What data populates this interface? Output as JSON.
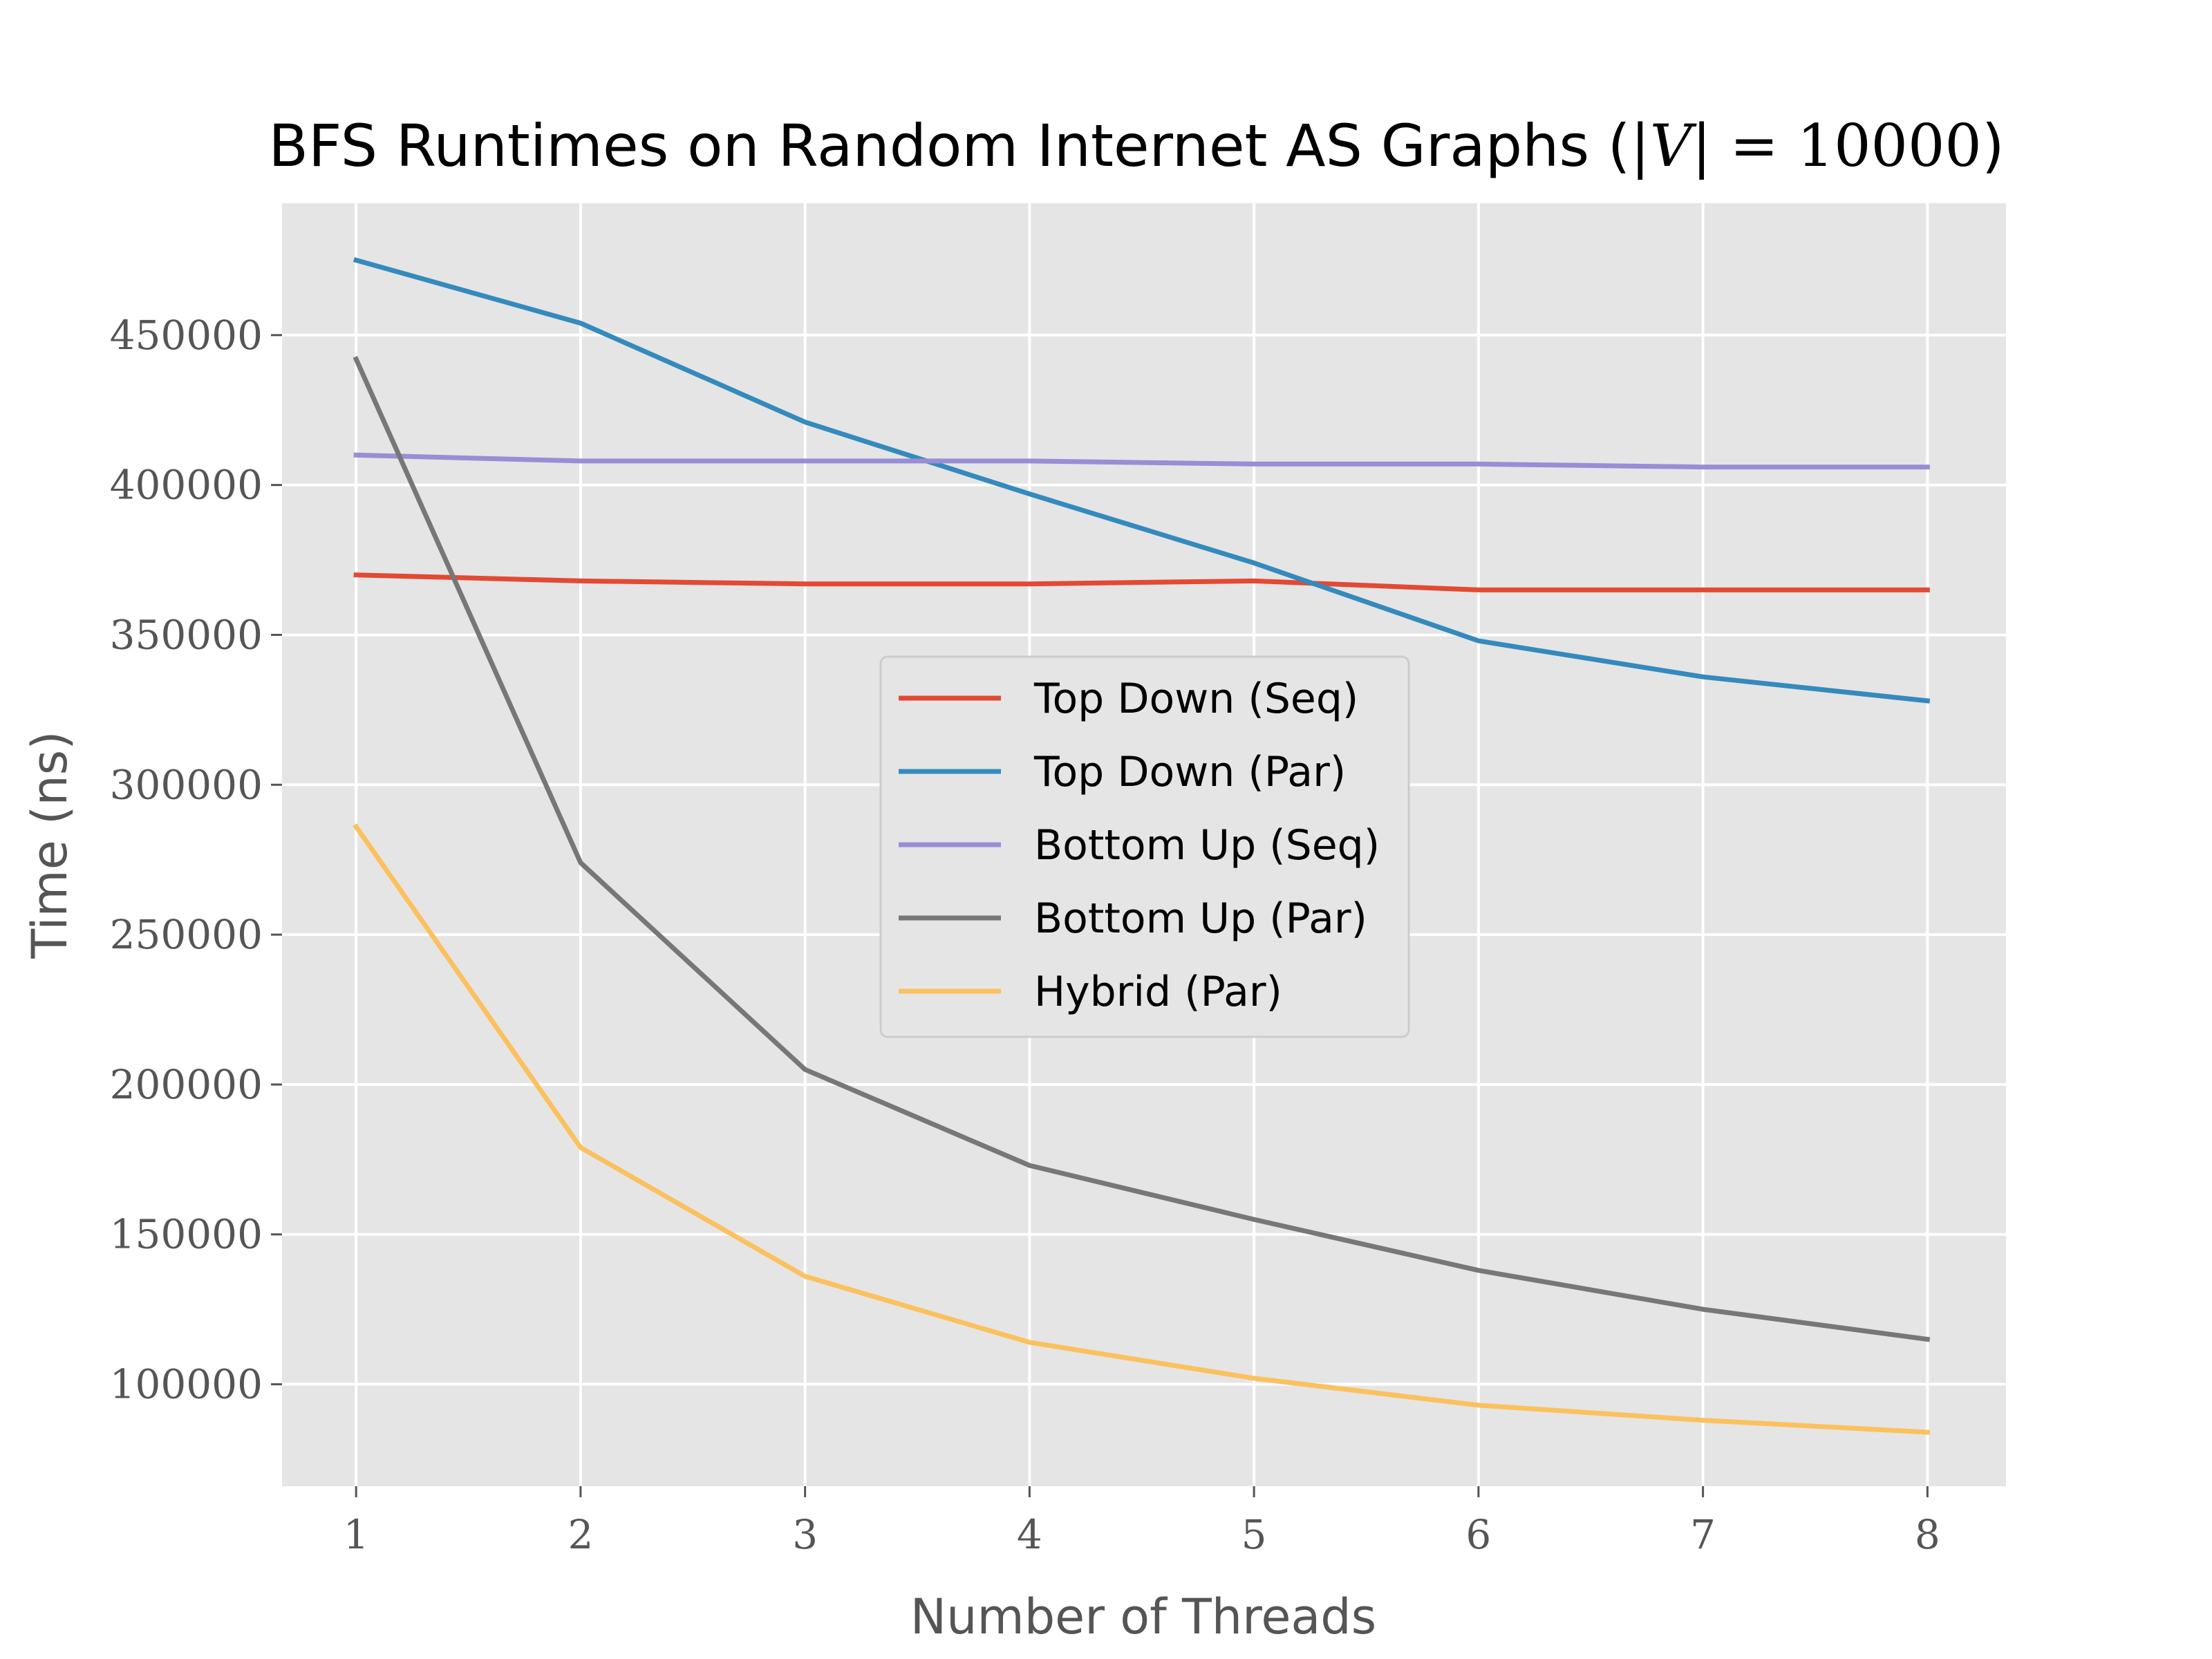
{
  "chart_data": {
    "type": "line",
    "title": {
      "prefix": "BFS Runtimes on Random Internet AS Graphs (",
      "abs_open": "|",
      "var": "V",
      "abs_close": "|",
      "eq": " = ",
      "num": "10000",
      "suffix": ")"
    },
    "xlabel": "Number of Threads",
    "ylabel": "Time (ns)",
    "x": [
      1,
      2,
      3,
      4,
      5,
      6,
      7,
      8
    ],
    "xticks": [
      "1",
      "2",
      "3",
      "4",
      "5",
      "6",
      "7",
      "8"
    ],
    "yticks": [
      "100000",
      "150000",
      "200000",
      "250000",
      "300000",
      "350000",
      "400000",
      "450000"
    ],
    "xlim": [
      0.67,
      8.35
    ],
    "ylim": [
      66000,
      494000
    ],
    "grid": true,
    "legend_position": "center",
    "background": "#e5e5e5",
    "series": [
      {
        "name": "Top Down (Seq)",
        "color": "#e24a33",
        "values": [
          370000,
          368000,
          367000,
          367000,
          368000,
          365000,
          365000,
          365000
        ]
      },
      {
        "name": "Top Down (Par)",
        "color": "#348abd",
        "values": [
          475000,
          454000,
          421000,
          397000,
          374000,
          348000,
          336000,
          328000
        ]
      },
      {
        "name": "Bottom Up (Seq)",
        "color": "#988ed5",
        "values": [
          410000,
          408000,
          408000,
          408000,
          407000,
          407000,
          406000,
          406000
        ]
      },
      {
        "name": "Bottom Up (Par)",
        "color": "#777777",
        "values": [
          442000,
          274000,
          205000,
          173000,
          155000,
          138000,
          125000,
          115000
        ]
      },
      {
        "name": "Hybrid (Par)",
        "color": "#fbc15e",
        "values": [
          286000,
          179000,
          136000,
          114000,
          102000,
          93000,
          88000,
          84000
        ]
      }
    ]
  }
}
